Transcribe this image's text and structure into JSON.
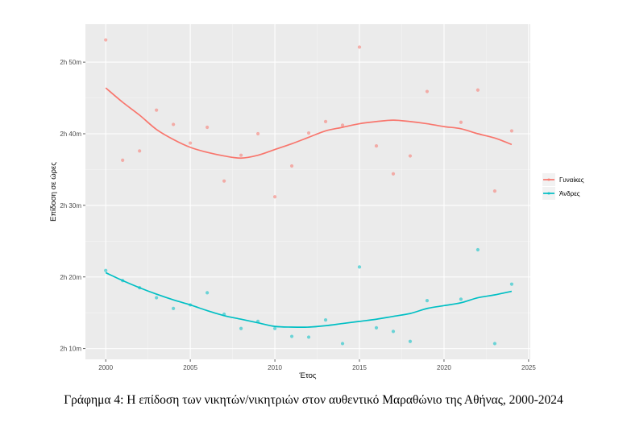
{
  "caption": "Γράφημα 4: Η επίδοση των νικητών/νικητριών στον αυθεντικό Μαραθώνιο της Αθήνας, 2000-2024",
  "chart_data": {
    "type": "scatter",
    "title": "",
    "xlabel": "Έτος",
    "ylabel": "Επίδοση σε ώρες",
    "xlim": [
      1998.8,
      2025.1
    ],
    "ylim_minutes": [
      128.5,
      175.3
    ],
    "x_ticks": [
      2000,
      2005,
      2010,
      2015,
      2020,
      2025
    ],
    "x_tick_labels": [
      "2000",
      "2005",
      "2010",
      "2015",
      "2020",
      "2025"
    ],
    "y_ticks_minutes": [
      130,
      140,
      150,
      160,
      170
    ],
    "y_tick_labels": [
      "2h 10m",
      "2h 20m",
      "2h 30m",
      "2h 40m",
      "2h 50m"
    ],
    "grid": true,
    "legend_position": "right",
    "series": [
      {
        "name": "Γυναίκες",
        "color": "#F8766D",
        "points": [
          {
            "x": 2000,
            "y": 173.1
          },
          {
            "x": 2001,
            "y": 156.3
          },
          {
            "x": 2002,
            "y": 157.6
          },
          {
            "x": 2003,
            "y": 163.3
          },
          {
            "x": 2004,
            "y": 161.3
          },
          {
            "x": 2005,
            "y": 158.7
          },
          {
            "x": 2006,
            "y": 160.9
          },
          {
            "x": 2007,
            "y": 153.4
          },
          {
            "x": 2008,
            "y": 157.0
          },
          {
            "x": 2009,
            "y": 160.0
          },
          {
            "x": 2010,
            "y": 151.2
          },
          {
            "x": 2011,
            "y": 155.5
          },
          {
            "x": 2012,
            "y": 160.1
          },
          {
            "x": 2013,
            "y": 161.7
          },
          {
            "x": 2014,
            "y": 161.2
          },
          {
            "x": 2015,
            "y": 172.1
          },
          {
            "x": 2016,
            "y": 158.3
          },
          {
            "x": 2017,
            "y": 154.4
          },
          {
            "x": 2018,
            "y": 156.9
          },
          {
            "x": 2019,
            "y": 165.9
          },
          {
            "x": 2021,
            "y": 161.6
          },
          {
            "x": 2022,
            "y": 166.1
          },
          {
            "x": 2023,
            "y": 152.0
          },
          {
            "x": 2024,
            "y": 160.4
          }
        ],
        "smooth": [
          {
            "x": 2000,
            "y": 166.4
          },
          {
            "x": 2001,
            "y": 164.4
          },
          {
            "x": 2002,
            "y": 162.6
          },
          {
            "x": 2003,
            "y": 160.6
          },
          {
            "x": 2004,
            "y": 159.2
          },
          {
            "x": 2005,
            "y": 158.1
          },
          {
            "x": 2006,
            "y": 157.4
          },
          {
            "x": 2007,
            "y": 156.9
          },
          {
            "x": 2008,
            "y": 156.6
          },
          {
            "x": 2009,
            "y": 157.0
          },
          {
            "x": 2010,
            "y": 157.8
          },
          {
            "x": 2011,
            "y": 158.6
          },
          {
            "x": 2012,
            "y": 159.5
          },
          {
            "x": 2013,
            "y": 160.4
          },
          {
            "x": 2014,
            "y": 160.9
          },
          {
            "x": 2015,
            "y": 161.4
          },
          {
            "x": 2016,
            "y": 161.7
          },
          {
            "x": 2017,
            "y": 161.9
          },
          {
            "x": 2018,
            "y": 161.7
          },
          {
            "x": 2019,
            "y": 161.4
          },
          {
            "x": 2020,
            "y": 161.0
          },
          {
            "x": 2021,
            "y": 160.7
          },
          {
            "x": 2022,
            "y": 160.0
          },
          {
            "x": 2023,
            "y": 159.4
          },
          {
            "x": 2024,
            "y": 158.5
          }
        ]
      },
      {
        "name": "Άνδρες",
        "color": "#00BFC4",
        "points": [
          {
            "x": 2000,
            "y": 140.9
          },
          {
            "x": 2001,
            "y": 139.5
          },
          {
            "x": 2002,
            "y": 138.5
          },
          {
            "x": 2003,
            "y": 137.1
          },
          {
            "x": 2004,
            "y": 135.6
          },
          {
            "x": 2005,
            "y": 136.1
          },
          {
            "x": 2006,
            "y": 137.8
          },
          {
            "x": 2007,
            "y": 134.8
          },
          {
            "x": 2008,
            "y": 132.8
          },
          {
            "x": 2009,
            "y": 133.8
          },
          {
            "x": 2010,
            "y": 132.8
          },
          {
            "x": 2011,
            "y": 131.7
          },
          {
            "x": 2012,
            "y": 131.6
          },
          {
            "x": 2013,
            "y": 134.0
          },
          {
            "x": 2014,
            "y": 130.7
          },
          {
            "x": 2015,
            "y": 141.4
          },
          {
            "x": 2016,
            "y": 132.9
          },
          {
            "x": 2017,
            "y": 132.4
          },
          {
            "x": 2018,
            "y": 131.0
          },
          {
            "x": 2019,
            "y": 136.7
          },
          {
            "x": 2021,
            "y": 136.9
          },
          {
            "x": 2022,
            "y": 143.8
          },
          {
            "x": 2023,
            "y": 130.7
          },
          {
            "x": 2024,
            "y": 139.0
          }
        ],
        "smooth": [
          {
            "x": 2000,
            "y": 140.6
          },
          {
            "x": 2001,
            "y": 139.5
          },
          {
            "x": 2002,
            "y": 138.5
          },
          {
            "x": 2003,
            "y": 137.6
          },
          {
            "x": 2004,
            "y": 136.8
          },
          {
            "x": 2005,
            "y": 136.1
          },
          {
            "x": 2006,
            "y": 135.3
          },
          {
            "x": 2007,
            "y": 134.6
          },
          {
            "x": 2008,
            "y": 134.1
          },
          {
            "x": 2009,
            "y": 133.6
          },
          {
            "x": 2010,
            "y": 133.1
          },
          {
            "x": 2011,
            "y": 133.0
          },
          {
            "x": 2012,
            "y": 133.0
          },
          {
            "x": 2013,
            "y": 133.2
          },
          {
            "x": 2014,
            "y": 133.5
          },
          {
            "x": 2015,
            "y": 133.8
          },
          {
            "x": 2016,
            "y": 134.1
          },
          {
            "x": 2017,
            "y": 134.5
          },
          {
            "x": 2018,
            "y": 134.9
          },
          {
            "x": 2019,
            "y": 135.6
          },
          {
            "x": 2020,
            "y": 136.0
          },
          {
            "x": 2021,
            "y": 136.4
          },
          {
            "x": 2022,
            "y": 137.1
          },
          {
            "x": 2023,
            "y": 137.5
          },
          {
            "x": 2024,
            "y": 138.0
          }
        ]
      }
    ]
  }
}
